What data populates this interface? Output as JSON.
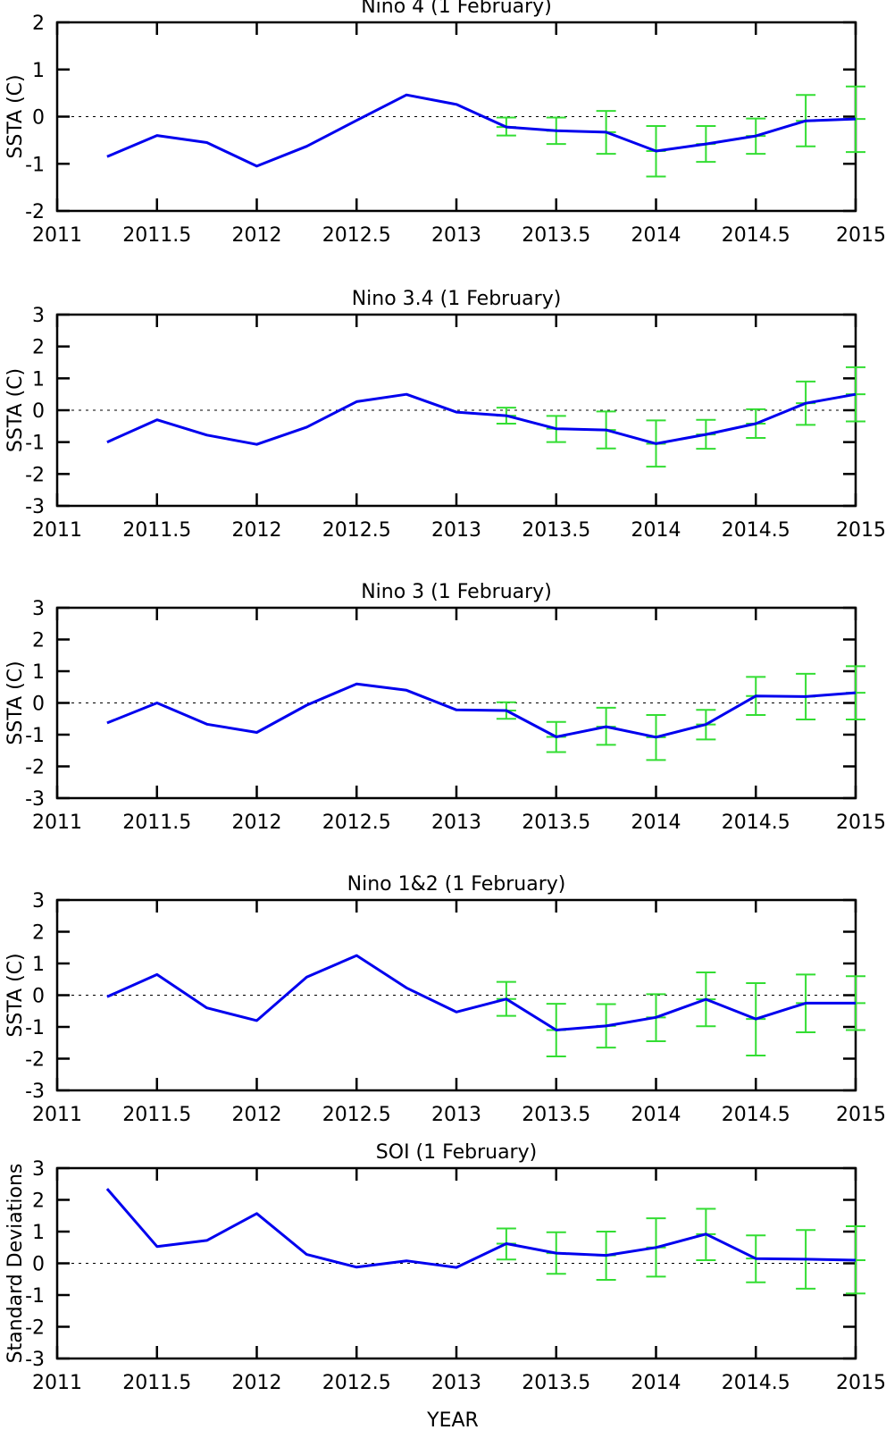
{
  "chart_data": [
    {
      "type": "line",
      "title": "Nino 4 (1 February)",
      "ylabel": "SSTA (C)",
      "xlabel": "",
      "xlim": [
        2011,
        2015
      ],
      "ylim": [
        -2,
        2
      ],
      "xticks": [
        2011,
        2011.5,
        2012,
        2012.5,
        2013,
        2013.5,
        2014,
        2014.5,
        2015
      ],
      "xticklabels": [
        "2011",
        "2011.5",
        "2012",
        "2012.5",
        "2013",
        "2013.5",
        "2014",
        "2014.5",
        "2015"
      ],
      "yticks": [
        -2,
        -1,
        0,
        1,
        2
      ],
      "yticklabels": [
        "-2",
        "-1",
        "0",
        "1",
        "2"
      ],
      "zero_line": "dotted",
      "series": [
        {
          "color": "#0000ee",
          "x": [
            2011.25,
            2011.5,
            2011.75,
            2012,
            2012.25,
            2012.5,
            2012.75,
            2013,
            2013.25,
            2013.5,
            2013.75,
            2014,
            2014.25,
            2014.5,
            2014.75,
            2015
          ],
          "y": [
            -0.85,
            -0.4,
            -0.55,
            -1.05,
            -0.63,
            -0.08,
            0.46,
            0.26,
            -0.22,
            -0.3,
            -0.33,
            -0.73,
            -0.58,
            -0.41,
            -0.09,
            -0.05
          ]
        }
      ],
      "errorbars": {
        "color": "#33dd33",
        "x": [
          2013.25,
          2013.5,
          2013.75,
          2014,
          2014.25,
          2014.5,
          2014.75,
          2015
        ],
        "y": [
          -0.22,
          -0.3,
          -0.33,
          -0.73,
          -0.58,
          -0.41,
          -0.09,
          -0.05
        ],
        "low": [
          -0.4,
          -0.58,
          -0.79,
          -1.27,
          -0.96,
          -0.79,
          -0.63,
          -0.75
        ],
        "high": [
          -0.02,
          -0.02,
          0.12,
          -0.2,
          -0.2,
          -0.04,
          0.46,
          0.64
        ]
      }
    },
    {
      "type": "line",
      "title": "Nino 3.4 (1 February)",
      "ylabel": "SSTA (C)",
      "xlabel": "",
      "xlim": [
        2011,
        2015
      ],
      "ylim": [
        -3,
        3
      ],
      "xticks": [
        2011,
        2011.5,
        2012,
        2012.5,
        2013,
        2013.5,
        2014,
        2014.5,
        2015
      ],
      "xticklabels": [
        "2011",
        "2011.5",
        "2012",
        "2012.5",
        "2013",
        "2013.5",
        "2014",
        "2014.5",
        "2015"
      ],
      "yticks": [
        -3,
        -2,
        -1,
        0,
        1,
        2,
        3
      ],
      "yticklabels": [
        "-3",
        "-2",
        "-1",
        "0",
        "1",
        "2",
        "3"
      ],
      "zero_line": "dotted",
      "series": [
        {
          "color": "#0000ee",
          "x": [
            2011.25,
            2011.5,
            2011.75,
            2012,
            2012.25,
            2012.5,
            2012.75,
            2013,
            2013.25,
            2013.5,
            2013.75,
            2014,
            2014.25,
            2014.5,
            2014.75,
            2015
          ],
          "y": [
            -1.0,
            -0.3,
            -0.78,
            -1.07,
            -0.53,
            0.27,
            0.5,
            -0.06,
            -0.17,
            -0.58,
            -0.62,
            -1.05,
            -0.76,
            -0.42,
            0.22,
            0.5
          ]
        }
      ],
      "errorbars": {
        "color": "#33dd33",
        "x": [
          2013.25,
          2013.5,
          2013.75,
          2014,
          2014.25,
          2014.5,
          2014.75,
          2015
        ],
        "y": [
          -0.17,
          -0.58,
          -0.62,
          -1.05,
          -0.76,
          -0.42,
          0.22,
          0.5
        ],
        "low": [
          -0.42,
          -1.0,
          -1.2,
          -1.77,
          -1.21,
          -0.87,
          -0.46,
          -0.35
        ],
        "high": [
          0.08,
          -0.18,
          -0.04,
          -0.32,
          -0.3,
          0.03,
          0.9,
          1.35
        ]
      }
    },
    {
      "type": "line",
      "title": "Nino 3 (1 February)",
      "ylabel": "SSTA (C)",
      "xlabel": "",
      "xlim": [
        2011,
        2015
      ],
      "ylim": [
        -3,
        3
      ],
      "xticks": [
        2011,
        2011.5,
        2012,
        2012.5,
        2013,
        2013.5,
        2014,
        2014.5,
        2015
      ],
      "xticklabels": [
        "2011",
        "2011.5",
        "2012",
        "2012.5",
        "2013",
        "2013.5",
        "2014",
        "2014.5",
        "2015"
      ],
      "yticks": [
        -3,
        -2,
        -1,
        0,
        1,
        2,
        3
      ],
      "yticklabels": [
        "-3",
        "-2",
        "-1",
        "0",
        "1",
        "2",
        "3"
      ],
      "zero_line": "dotted",
      "series": [
        {
          "color": "#0000ee",
          "x": [
            2011.25,
            2011.5,
            2011.75,
            2012,
            2012.25,
            2012.5,
            2012.75,
            2013,
            2013.25,
            2013.5,
            2013.75,
            2014,
            2014.25,
            2014.5,
            2014.75,
            2015
          ],
          "y": [
            -0.63,
            0.0,
            -0.67,
            -0.93,
            -0.07,
            0.6,
            0.4,
            -0.22,
            -0.24,
            -1.07,
            -0.75,
            -1.08,
            -0.68,
            0.22,
            0.2,
            0.32
          ]
        }
      ],
      "errorbars": {
        "color": "#33dd33",
        "x": [
          2013.25,
          2013.5,
          2013.75,
          2014,
          2014.25,
          2014.5,
          2014.75,
          2015
        ],
        "y": [
          -0.24,
          -1.07,
          -0.75,
          -1.08,
          -0.68,
          0.22,
          0.2,
          0.32
        ],
        "low": [
          -0.5,
          -1.55,
          -1.32,
          -1.8,
          -1.15,
          -0.38,
          -0.52,
          -0.52
        ],
        "high": [
          0.02,
          -0.6,
          -0.15,
          -0.38,
          -0.22,
          0.82,
          0.92,
          1.16
        ]
      }
    },
    {
      "type": "line",
      "title": "Nino 1&2 (1 February)",
      "ylabel": "SSTA (C)",
      "xlabel": "",
      "xlim": [
        2011,
        2015
      ],
      "ylim": [
        -3,
        3
      ],
      "xticks": [
        2011,
        2011.5,
        2012,
        2012.5,
        2013,
        2013.5,
        2014,
        2014.5,
        2015
      ],
      "xticklabels": [
        "2011",
        "2011.5",
        "2012",
        "2012.5",
        "2013",
        "2013.5",
        "2014",
        "2014.5",
        "2015"
      ],
      "yticks": [
        -3,
        -2,
        -1,
        0,
        1,
        2,
        3
      ],
      "yticklabels": [
        "-3",
        "-2",
        "-1",
        "0",
        "1",
        "2",
        "3"
      ],
      "zero_line": "dotted",
      "series": [
        {
          "color": "#0000ee",
          "x": [
            2011.25,
            2011.5,
            2011.75,
            2012,
            2012.25,
            2012.5,
            2012.75,
            2013,
            2013.25,
            2013.5,
            2013.75,
            2014,
            2014.25,
            2014.5,
            2014.75,
            2015
          ],
          "y": [
            -0.05,
            0.65,
            -0.4,
            -0.8,
            0.57,
            1.25,
            0.23,
            -0.53,
            -0.12,
            -1.1,
            -0.97,
            -0.7,
            -0.13,
            -0.75,
            -0.25,
            -0.25
          ]
        }
      ],
      "errorbars": {
        "color": "#33dd33",
        "x": [
          2013.25,
          2013.5,
          2013.75,
          2014,
          2014.25,
          2014.5,
          2014.75,
          2015
        ],
        "y": [
          -0.12,
          -1.1,
          -0.97,
          -0.7,
          -0.13,
          -0.75,
          -0.25,
          -0.25
        ],
        "low": [
          -0.65,
          -1.93,
          -1.65,
          -1.45,
          -0.98,
          -1.9,
          -1.17,
          -1.1
        ],
        "high": [
          0.42,
          -0.27,
          -0.28,
          0.03,
          0.72,
          0.38,
          0.65,
          0.6
        ]
      }
    },
    {
      "type": "line",
      "title": "SOI (1 February)",
      "ylabel": "Standard Deviations",
      "xlabel": "YEAR",
      "xlim": [
        2011,
        2015
      ],
      "ylim": [
        -3,
        3
      ],
      "xticks": [
        2011,
        2011.5,
        2012,
        2012.5,
        2013,
        2013.5,
        2014,
        2014.5,
        2015
      ],
      "xticklabels": [
        "2011",
        "2011.5",
        "2012",
        "2012.5",
        "2013",
        "2013.5",
        "2014",
        "2014.5",
        "2015"
      ],
      "yticks": [
        -3,
        -2,
        -1,
        0,
        1,
        2,
        3
      ],
      "yticklabels": [
        "-3",
        "-2",
        "-1",
        "0",
        "1",
        "2",
        "3"
      ],
      "zero_line": "dotted",
      "series": [
        {
          "color": "#0000ee",
          "x": [
            2011.25,
            2011.5,
            2011.75,
            2012,
            2012.25,
            2012.5,
            2012.75,
            2013,
            2013.25,
            2013.5,
            2013.75,
            2014,
            2014.25,
            2014.5,
            2014.75,
            2015
          ],
          "y": [
            2.35,
            0.53,
            0.72,
            1.57,
            0.28,
            -0.12,
            0.08,
            -0.13,
            0.62,
            0.32,
            0.25,
            0.5,
            0.92,
            0.15,
            0.13,
            0.1
          ]
        }
      ],
      "errorbars": {
        "color": "#33dd33",
        "x": [
          2013.25,
          2013.5,
          2013.75,
          2014,
          2014.25,
          2014.5,
          2014.75,
          2015
        ],
        "y": [
          0.62,
          0.32,
          0.25,
          0.5,
          0.92,
          0.15,
          0.13,
          0.1
        ],
        "low": [
          0.12,
          -0.33,
          -0.52,
          -0.42,
          0.1,
          -0.6,
          -0.8,
          -0.95
        ],
        "high": [
          1.1,
          0.98,
          1.0,
          1.42,
          1.72,
          0.88,
          1.05,
          1.17
        ]
      }
    }
  ]
}
